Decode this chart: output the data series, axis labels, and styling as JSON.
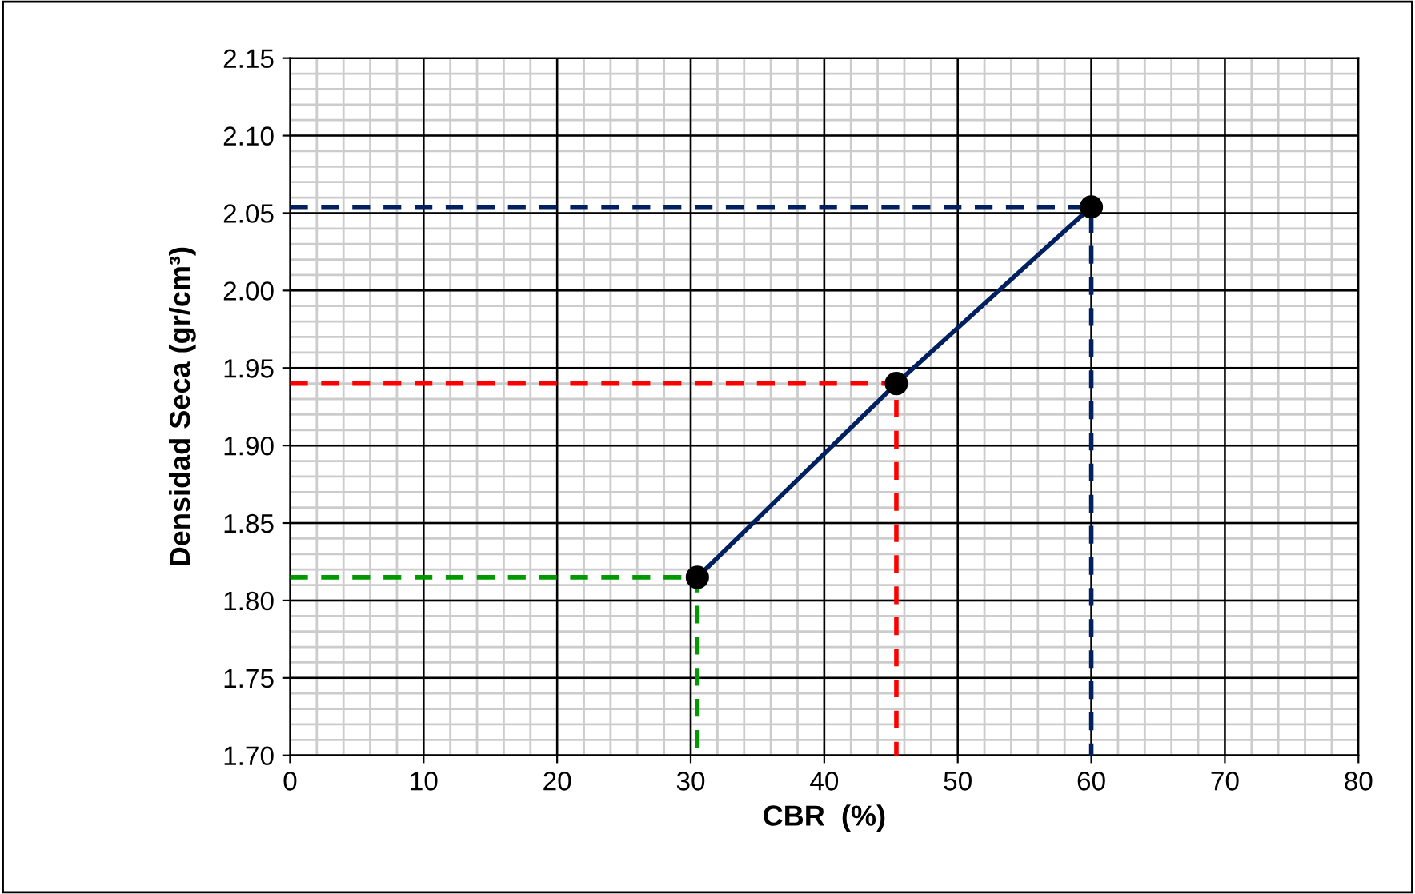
{
  "chart_data": {
    "type": "line",
    "xlabel": "CBR  (%)",
    "ylabel": "Densidad Seca (gr/cm³)",
    "xlim": [
      0,
      80
    ],
    "ylim": [
      1.7,
      2.15
    ],
    "xticks": [
      0,
      10,
      20,
      30,
      40,
      50,
      60,
      70,
      80
    ],
    "yticks": [
      {
        "value": 1.7,
        "label": "1.70"
      },
      {
        "value": 1.75,
        "label": "1.75"
      },
      {
        "value": 1.8,
        "label": "1.80"
      },
      {
        "value": 1.85,
        "label": "1.85"
      },
      {
        "value": 1.9,
        "label": "1.90"
      },
      {
        "value": 1.95,
        "label": "1.95"
      },
      {
        "value": 2.0,
        "label": "2.00"
      },
      {
        "value": 2.05,
        "label": "2.05"
      },
      {
        "value": 2.1,
        "label": "2.10"
      },
      {
        "value": 2.15,
        "label": "2.15"
      }
    ],
    "grid": true,
    "series": [
      {
        "color": "#009900",
        "x": [
          0,
          30.5,
          30.5
        ],
        "values": [
          1.815,
          1.815,
          1.7
        ],
        "line_style": "dashed",
        "marker": "none"
      },
      {
        "color": "#ff0000",
        "x": [
          0,
          45.4,
          45.4
        ],
        "values": [
          1.94,
          1.94,
          1.7
        ],
        "line_style": "dashed",
        "marker": "none"
      },
      {
        "color": "#002060",
        "x": [
          0,
          60,
          60
        ],
        "values": [
          2.054,
          2.054,
          1.7
        ],
        "line_style": "dashed",
        "marker": "none"
      },
      {
        "color": "#002060",
        "x": [
          30.5,
          45.4,
          60
        ],
        "values": [
          1.815,
          1.94,
          2.054
        ],
        "line_style": "solid",
        "marker": "none"
      },
      {
        "type": "scatter",
        "color": "#000000",
        "x": [
          30.5,
          45.4,
          60
        ],
        "values": [
          1.815,
          1.94,
          2.054
        ],
        "marker": "circle"
      }
    ]
  }
}
